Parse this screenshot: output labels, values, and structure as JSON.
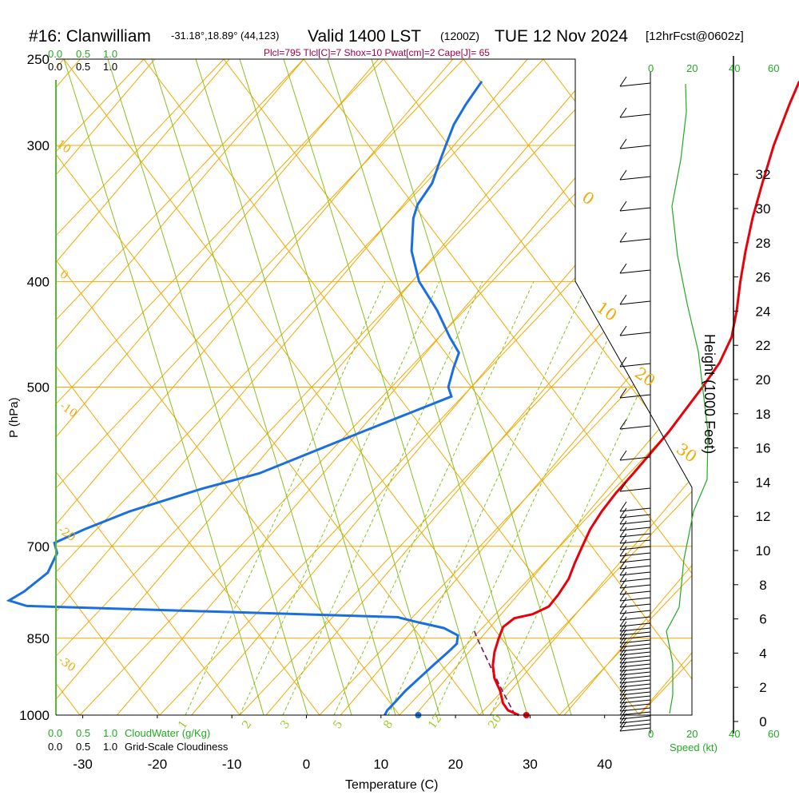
{
  "header": {
    "title_station": "#16: Clanwilliam",
    "title_coords": "-31.18°,18.89° (44,123)",
    "title_valid": "Valid 1400 LST",
    "title_utc": "(1200Z)",
    "title_date": "TUE 12 Nov 2024",
    "title_fcst": "[12hrFcst@0602z]",
    "params_line": "Plcl=795 Tlcl[C]=7 Shox=10 Pwat[cm]=2 Cape[J]= 65"
  },
  "labels": {
    "p_axis": "P (hPa)",
    "t_axis": "Temperature (C)",
    "height_axis": "Height (1000 Feet)",
    "speed_axis": "Speed (kt)",
    "cloudwater_label": "CloudWater (g/Kg)",
    "cloudiness_label": "Grid-Scale Cloudiness"
  },
  "scales": {
    "cloudwater_green": [
      "0.0",
      "0.5",
      "1.0"
    ],
    "cloudiness_black": [
      "0.0",
      "0.5",
      "1.0"
    ],
    "speed_ticks": [
      "0",
      "20",
      "40",
      "60"
    ]
  },
  "colors": {
    "temperature": "#e8000b",
    "dewpoint": "#1a6fe0",
    "parcel": "#6a1a5a",
    "isotherm": "#f2a900",
    "dry_adiabat": "#f2a900",
    "moist_adiabat": "#88c020",
    "mixing_ratio": "#88c020",
    "windspeed": "#22aa22",
    "frame": "#000000"
  },
  "chart_data": {
    "type": "skew-t",
    "x_axis": {
      "label": "Temperature (C)",
      "ticks": [
        -30,
        -20,
        -10,
        0,
        10,
        20,
        30,
        40
      ],
      "range": [
        -33.5,
        36
      ]
    },
    "y_axis": {
      "label": "P (hPa)",
      "ticks": [
        250,
        300,
        400,
        500,
        700,
        850,
        1000
      ],
      "range": [
        250,
        1000
      ]
    },
    "height_axis": {
      "label": "Height (1000 Feet)",
      "ticks": [
        0,
        2,
        4,
        6,
        8,
        10,
        12,
        14,
        16,
        18,
        20,
        22,
        24,
        26,
        28,
        30,
        32
      ]
    },
    "speed_axis": {
      "label": "Speed (kt)",
      "ticks": [
        0,
        20,
        40,
        60
      ]
    },
    "isotherm_labels": [
      "-10",
      "0",
      "10",
      "20",
      "30"
    ],
    "dry_adiabat_labels": [
      "10",
      "0",
      "-10",
      "-20",
      "-30"
    ],
    "mixing_ratio_labels": [
      "1",
      "2",
      "3",
      "5",
      "8",
      "12",
      "20"
    ],
    "temperature_profile": [
      {
        "p": 1000,
        "t": 28.5
      },
      {
        "p": 990,
        "t": 26.5
      },
      {
        "p": 975,
        "t": 25.0
      },
      {
        "p": 950,
        "t": 23.2
      },
      {
        "p": 925,
        "t": 21.0
      },
      {
        "p": 900,
        "t": 19.3
      },
      {
        "p": 875,
        "t": 18.0
      },
      {
        "p": 850,
        "t": 17.0
      },
      {
        "p": 830,
        "t": 16.3
      },
      {
        "p": 815,
        "t": 16.8
      },
      {
        "p": 808,
        "t": 18.8
      },
      {
        "p": 795,
        "t": 20.1
      },
      {
        "p": 775,
        "t": 20.0
      },
      {
        "p": 750,
        "t": 19.6
      },
      {
        "p": 725,
        "t": 18.6
      },
      {
        "p": 700,
        "t": 17.7
      },
      {
        "p": 675,
        "t": 16.8
      },
      {
        "p": 650,
        "t": 16.3
      },
      {
        "p": 625,
        "t": 16.1
      },
      {
        "p": 600,
        "t": 16.2
      },
      {
        "p": 575,
        "t": 16.2
      },
      {
        "p": 550,
        "t": 16.2
      },
      {
        "p": 525,
        "t": 15.9
      },
      {
        "p": 500,
        "t": 15.6
      },
      {
        "p": 475,
        "t": 15.1
      },
      {
        "p": 450,
        "t": 13.8
      },
      {
        "p": 425,
        "t": 11.4
      },
      {
        "p": 400,
        "t": 8.6
      },
      {
        "p": 375,
        "t": 5.8
      },
      {
        "p": 350,
        "t": 3.0
      },
      {
        "p": 325,
        "t": 0.3
      },
      {
        "p": 300,
        "t": -2.5
      },
      {
        "p": 275,
        "t": -5.1
      },
      {
        "p": 262,
        "t": -6.4
      }
    ],
    "dewpoint_profile": [
      {
        "p": 1000,
        "t": 10.5
      },
      {
        "p": 990,
        "t": 10.3
      },
      {
        "p": 975,
        "t": 10.4
      },
      {
        "p": 950,
        "t": 10.5
      },
      {
        "p": 925,
        "t": 10.9
      },
      {
        "p": 900,
        "t": 11.3
      },
      {
        "p": 875,
        "t": 11.8
      },
      {
        "p": 860,
        "t": 12.0
      },
      {
        "p": 845,
        "t": 11.2
      },
      {
        "p": 832,
        "t": 8.5
      },
      {
        "p": 822,
        "t": 4.4
      },
      {
        "p": 813,
        "t": 1.0
      },
      {
        "p": 794,
        "t": -50.0
      },
      {
        "p": 785,
        "t": -53.0
      },
      {
        "p": 770,
        "t": -52.0
      },
      {
        "p": 740,
        "t": -51.0
      },
      {
        "p": 710,
        "t": -52.0
      },
      {
        "p": 695,
        "t": -53.5
      },
      {
        "p": 675,
        "t": -51.0
      },
      {
        "p": 650,
        "t": -47.0
      },
      {
        "p": 620,
        "t": -40.0
      },
      {
        "p": 600,
        "t": -34.0
      },
      {
        "p": 550,
        "t": -25.0
      },
      {
        "p": 510,
        "t": -17.0
      },
      {
        "p": 500,
        "t": -18.5
      },
      {
        "p": 480,
        "t": -20.0
      },
      {
        "p": 465,
        "t": -21.0
      },
      {
        "p": 450,
        "t": -24.0
      },
      {
        "p": 425,
        "t": -28.8
      },
      {
        "p": 400,
        "t": -34.5
      },
      {
        "p": 375,
        "t": -39.0
      },
      {
        "p": 350,
        "t": -42.5
      },
      {
        "p": 340,
        "t": -43.5
      },
      {
        "p": 325,
        "t": -44.0
      },
      {
        "p": 310,
        "t": -45.5
      },
      {
        "p": 300,
        "t": -46.5
      },
      {
        "p": 287,
        "t": -47.8
      },
      {
        "p": 275,
        "t": -48.5
      },
      {
        "p": 262,
        "t": -49.0
      }
    ],
    "parcel_profile": [
      {
        "p": 1000,
        "t": 28.0
      },
      {
        "p": 950,
        "t": 23.5
      },
      {
        "p": 900,
        "t": 18.9
      },
      {
        "p": 850,
        "t": 14.1
      },
      {
        "p": 835,
        "t": 12.7
      }
    ],
    "surface_temperature": 29.5,
    "surface_dewpoint": 15.0
  }
}
